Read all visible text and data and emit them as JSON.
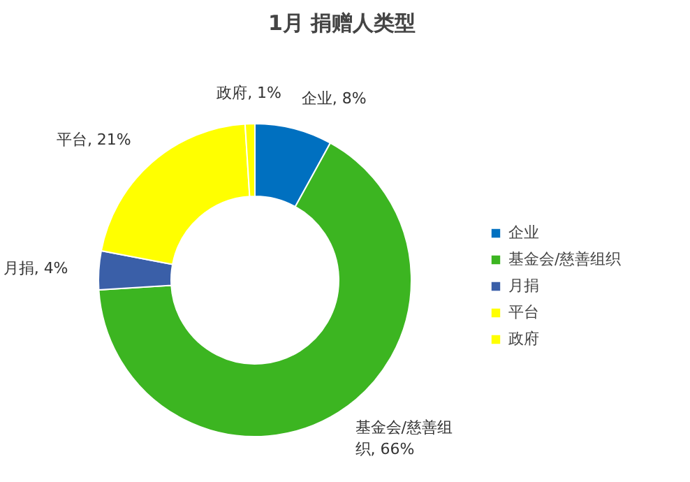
{
  "chart_data": {
    "type": "donut",
    "title": "1月  捐赠人类型",
    "categories": [
      "企业",
      "基金会/慈善组织",
      "月捐",
      "平台",
      "政府"
    ],
    "values": [
      8,
      66,
      4,
      21,
      1
    ],
    "value_labels": [
      "企业, 8%",
      "基金会/慈善组织, 66%",
      "月捐, 4%",
      "平台, 21%",
      "政府, 1%"
    ],
    "colors": [
      "#0070c0",
      "#3cb521",
      "#3a5fa8",
      "#ffff00",
      "#ffff00"
    ],
    "legend": "right"
  }
}
